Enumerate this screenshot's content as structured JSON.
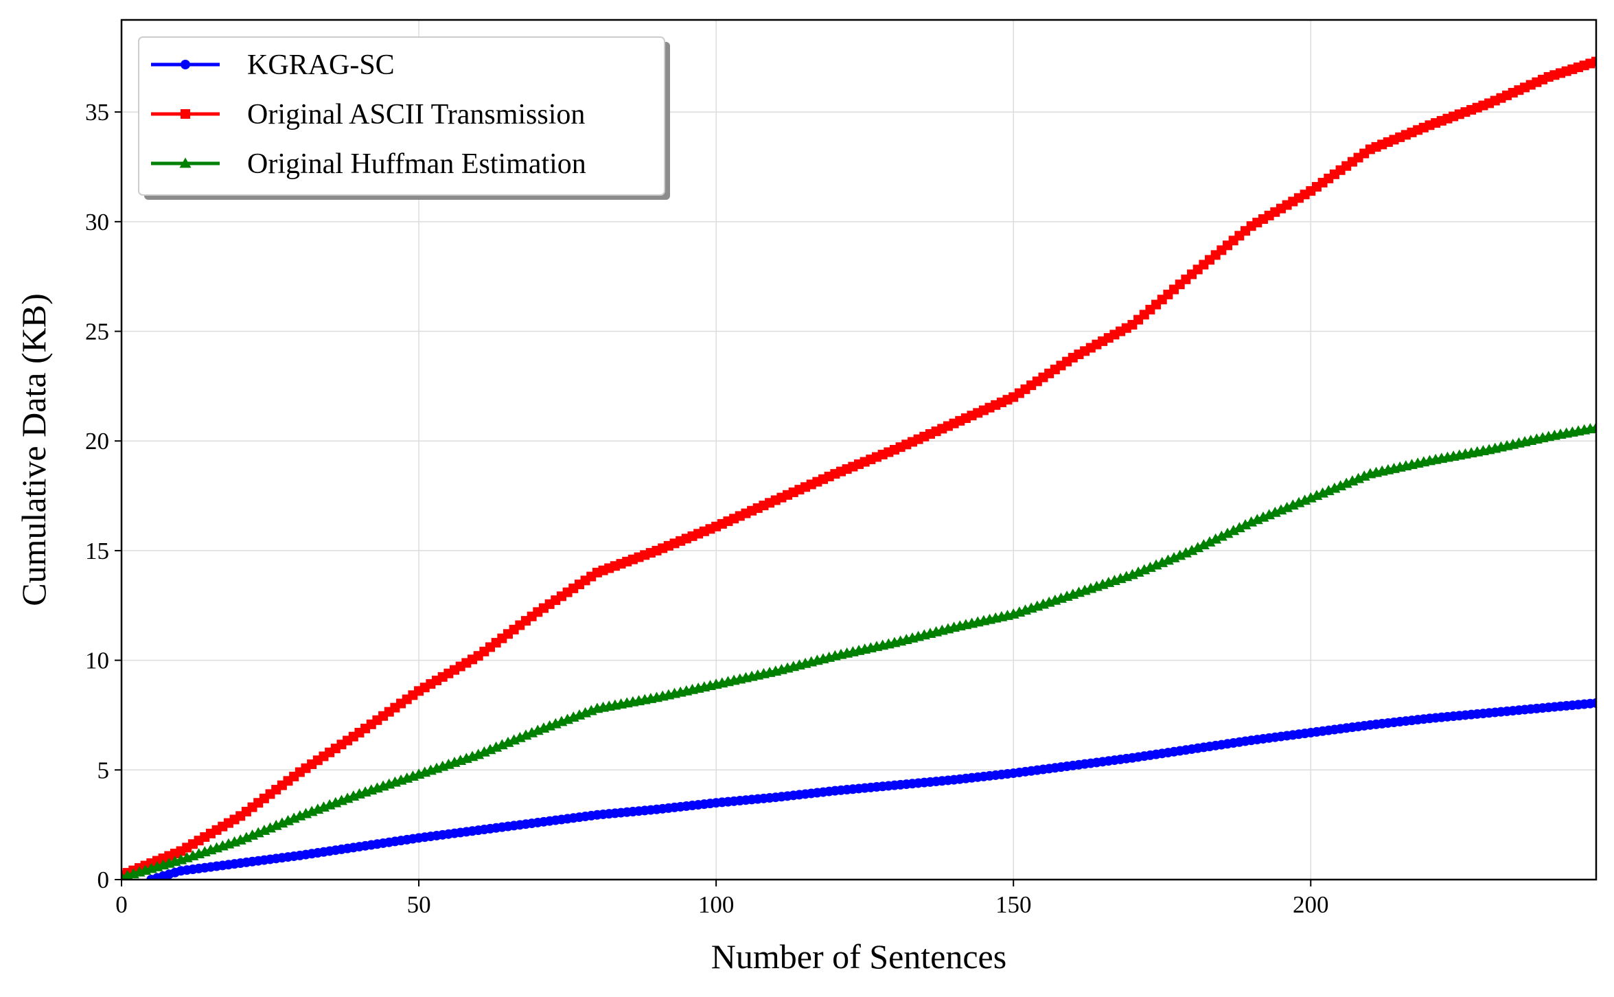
{
  "chart_data": {
    "type": "line",
    "title": "",
    "xlabel": "Number of Sentences",
    "ylabel": "Cumulative Data (KB)",
    "xlim": [
      0,
      248
    ],
    "ylim": [
      0,
      39.2
    ],
    "xticks": [
      0,
      50,
      100,
      150,
      200
    ],
    "yticks": [
      0,
      5,
      10,
      15,
      20,
      25,
      30,
      35
    ],
    "grid": true,
    "legend_position": "top-left",
    "series": [
      {
        "name": "KGRAG-SC",
        "color": "#0000ff",
        "marker": "circle",
        "points": [
          [
            5,
            0
          ],
          [
            10,
            0.4
          ],
          [
            20,
            0.75
          ],
          [
            30,
            1.1
          ],
          [
            40,
            1.5
          ],
          [
            50,
            1.9
          ],
          [
            60,
            2.25
          ],
          [
            70,
            2.6
          ],
          [
            80,
            2.95
          ],
          [
            90,
            3.2
          ],
          [
            100,
            3.5
          ],
          [
            110,
            3.75
          ],
          [
            120,
            4.05
          ],
          [
            130,
            4.3
          ],
          [
            140,
            4.55
          ],
          [
            150,
            4.85
          ],
          [
            160,
            5.2
          ],
          [
            170,
            5.55
          ],
          [
            180,
            5.95
          ],
          [
            190,
            6.35
          ],
          [
            200,
            6.7
          ],
          [
            210,
            7.05
          ],
          [
            220,
            7.35
          ],
          [
            230,
            7.6
          ],
          [
            240,
            7.85
          ],
          [
            248,
            8.05
          ]
        ]
      },
      {
        "name": "Original ASCII Transmission",
        "color": "#ff0000",
        "marker": "square",
        "points": [
          [
            0,
            0.2
          ],
          [
            10,
            1.3
          ],
          [
            20,
            2.9
          ],
          [
            30,
            4.9
          ],
          [
            40,
            6.7
          ],
          [
            50,
            8.6
          ],
          [
            60,
            10.2
          ],
          [
            70,
            12.2
          ],
          [
            80,
            14.0
          ],
          [
            90,
            15.0
          ],
          [
            100,
            16.1
          ],
          [
            110,
            17.3
          ],
          [
            120,
            18.5
          ],
          [
            130,
            19.6
          ],
          [
            140,
            20.8
          ],
          [
            150,
            22.0
          ],
          [
            160,
            23.8
          ],
          [
            170,
            25.3
          ],
          [
            180,
            27.6
          ],
          [
            190,
            29.8
          ],
          [
            200,
            31.4
          ],
          [
            210,
            33.3
          ],
          [
            220,
            34.4
          ],
          [
            230,
            35.4
          ],
          [
            240,
            36.6
          ],
          [
            248,
            37.3
          ]
        ]
      },
      {
        "name": "Original Huffman Estimation",
        "color": "#008000",
        "marker": "triangle",
        "points": [
          [
            0,
            0.1
          ],
          [
            10,
            0.9
          ],
          [
            20,
            1.8
          ],
          [
            30,
            2.9
          ],
          [
            40,
            3.9
          ],
          [
            50,
            4.8
          ],
          [
            60,
            5.7
          ],
          [
            70,
            6.8
          ],
          [
            80,
            7.8
          ],
          [
            90,
            8.3
          ],
          [
            100,
            8.9
          ],
          [
            110,
            9.5
          ],
          [
            120,
            10.2
          ],
          [
            130,
            10.8
          ],
          [
            140,
            11.5
          ],
          [
            150,
            12.1
          ],
          [
            160,
            13.0
          ],
          [
            170,
            13.9
          ],
          [
            180,
            15.0
          ],
          [
            190,
            16.3
          ],
          [
            200,
            17.4
          ],
          [
            210,
            18.5
          ],
          [
            220,
            19.1
          ],
          [
            230,
            19.6
          ],
          [
            240,
            20.2
          ],
          [
            248,
            20.6
          ]
        ]
      }
    ]
  }
}
